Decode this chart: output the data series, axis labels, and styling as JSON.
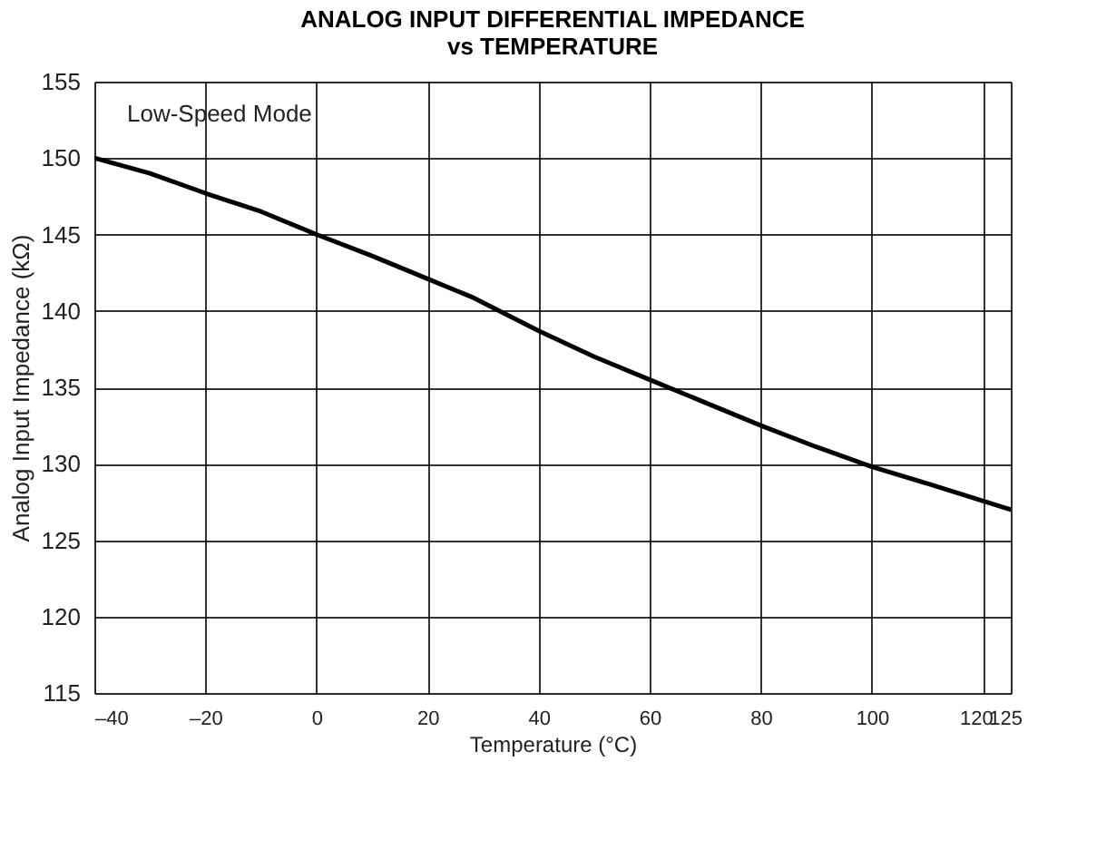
{
  "chart_data": {
    "type": "line",
    "title": [
      "ANALOG INPUT DIFFERENTIAL IMPEDANCE",
      "vs TEMPERATURE"
    ],
    "xlabel": "Temperature (°C)",
    "ylabel": "Analog Input Impedance (kΩ)",
    "annotations": [
      "Low-Speed Mode"
    ],
    "x": [
      -40,
      -30,
      -20,
      -10,
      0,
      10,
      20,
      28,
      40,
      50,
      60,
      70,
      80,
      90,
      100,
      110,
      125
    ],
    "series": [
      {
        "color": "#000000",
        "values": [
          150,
          149,
          147.7,
          146.5,
          145,
          143.6,
          142.1,
          140.9,
          138.7,
          137,
          135.5,
          134,
          132.5,
          131.1,
          129.8,
          128.7,
          127
        ]
      }
    ],
    "xlim": [
      -40,
      125
    ],
    "xticks": [
      {
        "value": -40,
        "label": "–40"
      },
      {
        "value": -20,
        "label": "–20"
      },
      0,
      20,
      40,
      60,
      80,
      100,
      120,
      125
    ],
    "ylim": [
      115,
      155
    ],
    "yticks": [
      115,
      120,
      125,
      130,
      135,
      140,
      145,
      150,
      155
    ],
    "grid": true,
    "marker": "none",
    "line_style": "solid"
  }
}
